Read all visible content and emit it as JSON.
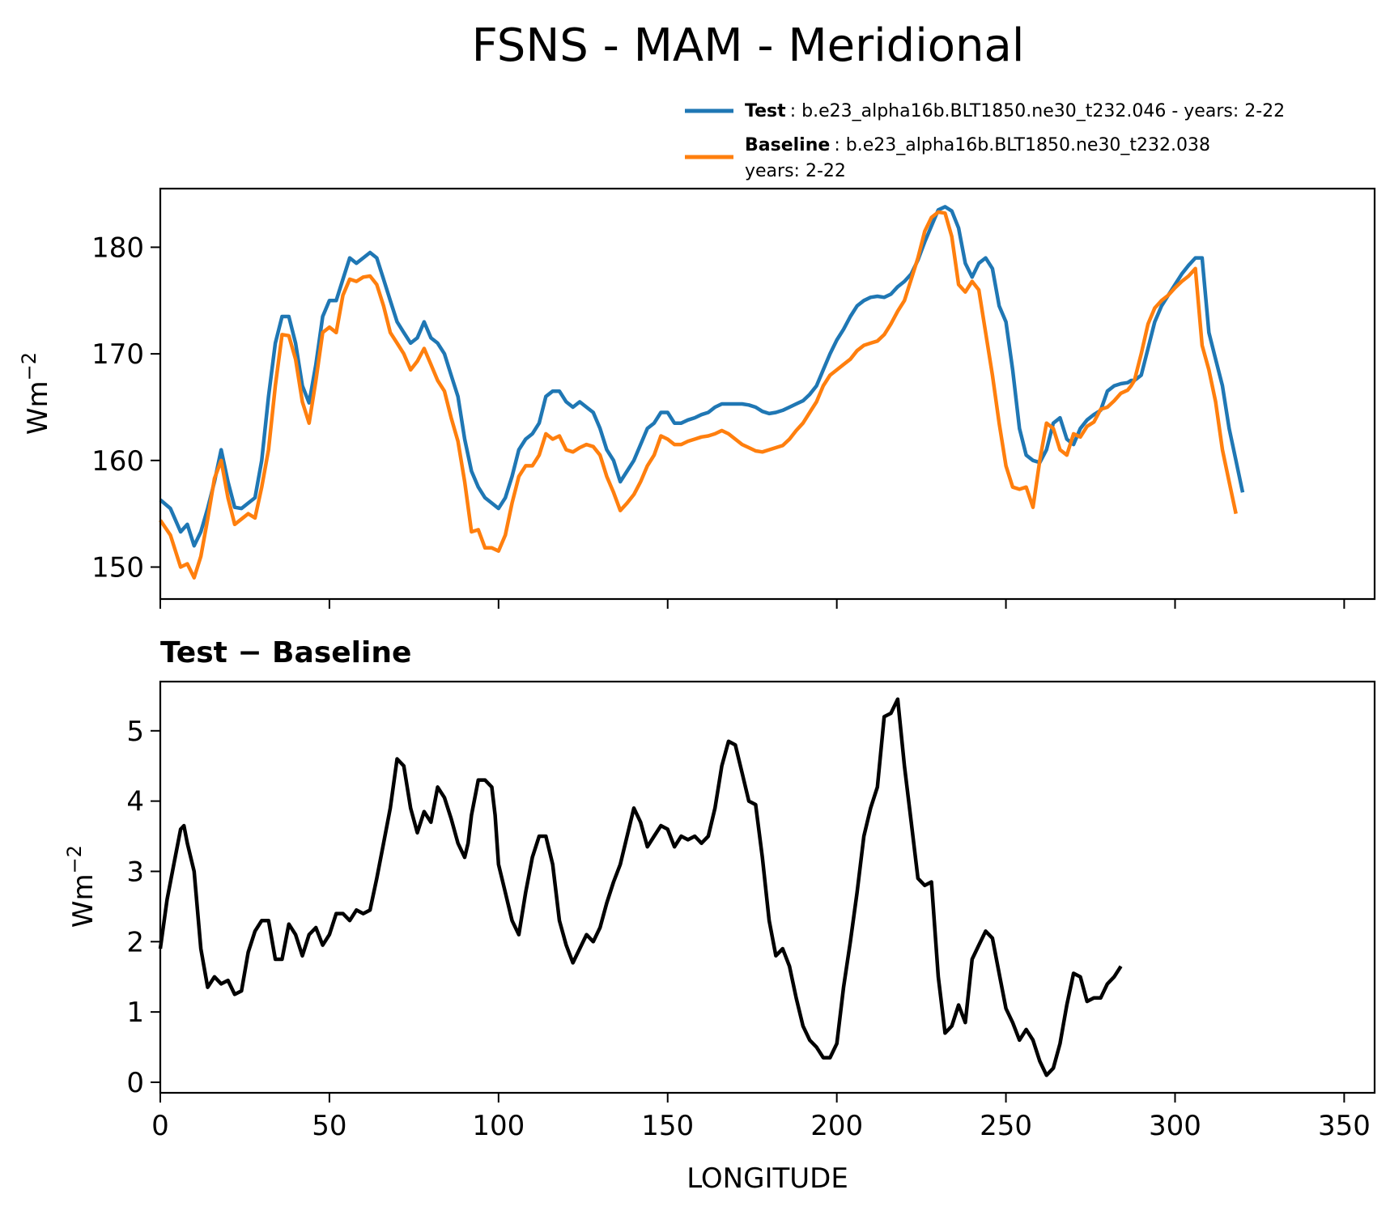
{
  "chart_data": [
    {
      "type": "line",
      "title": "FSNS - MAM - Meridional",
      "xlabel": "",
      "ylabel": "Wm",
      "ylabel_sup": "−2",
      "xlim": [
        0,
        359
      ],
      "ylim": [
        147,
        185.5
      ],
      "xticks": [
        0,
        50,
        100,
        150,
        200,
        250,
        300,
        350
      ],
      "yticks": [
        150,
        160,
        170,
        180
      ],
      "x_anchor": [
        0,
        3,
        6,
        8,
        10,
        12,
        14,
        16,
        18,
        20,
        22,
        24,
        26,
        28,
        30,
        32,
        34,
        36,
        38,
        40,
        42,
        44,
        46,
        48,
        50,
        52,
        54,
        56,
        58,
        60,
        62,
        64,
        66,
        68,
        70,
        72,
        74,
        76,
        78,
        80,
        82,
        84,
        86,
        88,
        90,
        92,
        94,
        96,
        98,
        100,
        102,
        104,
        106,
        108,
        110,
        112,
        114,
        116,
        118,
        120,
        122,
        124,
        126,
        128,
        130,
        132,
        134,
        136,
        138,
        140,
        142,
        144,
        146,
        148,
        150,
        152,
        154,
        156,
        158,
        160,
        162,
        164,
        166,
        168,
        170,
        172,
        174,
        176,
        178,
        180,
        182,
        184,
        186,
        188,
        190,
        192,
        194,
        196,
        198,
        200,
        202,
        204,
        206,
        208,
        210,
        212,
        214,
        216,
        218,
        220,
        222,
        224,
        226,
        228,
        230,
        232,
        234,
        236,
        238,
        240,
        242,
        244,
        246,
        248,
        250,
        252,
        254,
        256,
        258,
        260,
        262,
        264,
        266,
        268,
        270,
        272,
        274,
        276,
        278,
        280,
        282,
        284,
        286,
        287,
        288,
        290,
        292,
        294,
        296,
        298,
        300,
        302,
        304,
        306,
        308,
        310,
        312,
        314,
        316,
        318,
        320,
        322,
        324,
        326,
        328,
        330,
        332,
        334,
        336,
        338,
        340,
        342,
        344,
        346,
        348,
        350,
        352,
        354,
        356,
        359
      ],
      "series": [
        {
          "name": "Test",
          "legend_label": "Test",
          "legend_desc": ": b.e23_alpha16b.BLT1850.ne30_t232.046 - years: 2-22",
          "color": "#1f77b4",
          "values": [
            156.3,
            155.5,
            153.3,
            154,
            152,
            153.3,
            155.5,
            158,
            161,
            158,
            155.6,
            155.5,
            156,
            156.5,
            160,
            166,
            171,
            173.5,
            173.5,
            171,
            167,
            165.4,
            169,
            173.5,
            175,
            175,
            177,
            179,
            178.5,
            179,
            179.5,
            179,
            177,
            175,
            173,
            172,
            171,
            171.5,
            173,
            171.5,
            171,
            170,
            168,
            166,
            162,
            159,
            157.5,
            156.5,
            156,
            155.5,
            156.5,
            158.5,
            161,
            162,
            162.5,
            163.5,
            166,
            166.5,
            166.5,
            165.5,
            165,
            165.5,
            165,
            164.5,
            163,
            161,
            160,
            158,
            159,
            160,
            161.5,
            163,
            163.5,
            164.5,
            164.5,
            163.5,
            163.5,
            163.8,
            164,
            164.3,
            164.5,
            165,
            165.3,
            165.3,
            165.3,
            165.3,
            165.2,
            165,
            164.6,
            164.4,
            164.5,
            164.7,
            165,
            165.3,
            165.6,
            166.2,
            167,
            168.5,
            170,
            171.3,
            172.3,
            173.5,
            174.5,
            175,
            175.3,
            175.4,
            175.3,
            175.6,
            176.3,
            176.8,
            177.5,
            178.8,
            180.5,
            182,
            183.5,
            183.8,
            183.4,
            181.8,
            178.5,
            177.2,
            178.5,
            179,
            178,
            174.5,
            173,
            168.5,
            163,
            160.5,
            160,
            159.8,
            161,
            163.5,
            164,
            162,
            161.5,
            163,
            163.8,
            164.3,
            164.7,
            166.5,
            167,
            167.2,
            167.3,
            167.5,
            167.5,
            168,
            170.5,
            173,
            174.5,
            175.5,
            176.5,
            177.5,
            178.3,
            179,
            179,
            172,
            169.5,
            167,
            163,
            160,
            157
          ],
          "legend_pos": "top-right"
        },
        {
          "name": "Baseline",
          "legend_label": "Baseline",
          "legend_desc": ": b.e23_alpha16b.BLT1850.ne30_t232.038",
          "legend_desc2": "years: 2-22",
          "color": "#ff7f0e",
          "values": [
            154.4,
            153,
            150,
            150.3,
            149,
            151,
            154.5,
            158.3,
            160,
            156.5,
            154,
            154.5,
            155,
            154.6,
            157.5,
            161,
            167,
            171.8,
            171.7,
            169.5,
            165.5,
            163.5,
            167.5,
            172,
            172.5,
            172,
            175.5,
            177,
            176.8,
            177.2,
            177.3,
            176.5,
            174.5,
            172,
            171,
            170,
            168.5,
            169.3,
            170.5,
            169,
            167.5,
            166.5,
            164,
            161.8,
            158,
            153.3,
            153.5,
            151.8,
            151.8,
            151.5,
            153,
            156,
            158.5,
            159.5,
            159.5,
            160.5,
            162.5,
            162,
            162.3,
            161,
            160.8,
            161.2,
            161.5,
            161.3,
            160.5,
            158.5,
            157,
            155.3,
            156,
            156.8,
            158,
            159.5,
            160.5,
            162.3,
            162,
            161.5,
            161.5,
            161.8,
            162,
            162.2,
            162.3,
            162.5,
            162.8,
            162.5,
            162,
            161.5,
            161.2,
            160.9,
            160.8,
            161,
            161.2,
            161.4,
            162,
            162.8,
            163.5,
            164.5,
            165.5,
            167,
            168,
            168.5,
            169,
            169.5,
            170.3,
            170.8,
            171,
            171.2,
            171.8,
            172.8,
            174,
            175,
            177,
            179,
            181.5,
            182.8,
            183.3,
            183.2,
            181,
            176.5,
            175.8,
            176.8,
            176,
            172,
            168,
            163.5,
            159.5,
            157.5,
            157.3,
            157.5,
            155.6,
            160,
            163.5,
            163,
            161,
            160.5,
            162.5,
            162.2,
            163.2,
            163.6,
            164.8,
            165,
            165.6,
            166.3,
            166.6,
            167,
            167.5,
            170,
            172.8,
            174.3,
            175,
            175.5,
            176.2,
            176.8,
            177.3,
            178,
            170.8,
            168.5,
            165.5,
            161,
            158,
            155
          ]
        }
      ]
    },
    {
      "type": "line",
      "title": "Test − Baseline",
      "xlabel": "LONGITUDE",
      "ylabel": "Wm",
      "ylabel_sup": "−2",
      "xlim": [
        0,
        359
      ],
      "ylim": [
        -0.15,
        5.7
      ],
      "xticks": [
        0,
        50,
        100,
        150,
        200,
        250,
        300,
        350
      ],
      "yticks": [
        0,
        1,
        2,
        3,
        4,
        5
      ],
      "x_anchor": [
        0,
        2,
        4,
        6,
        7,
        8,
        10,
        12,
        14,
        16,
        18,
        20,
        22,
        24,
        26,
        28,
        30,
        32,
        34,
        36,
        38,
        40,
        42,
        44,
        46,
        48,
        50,
        52,
        54,
        56,
        58,
        60,
        62,
        64,
        66,
        68,
        70,
        72,
        74,
        76,
        78,
        80,
        82,
        84,
        86,
        88,
        90,
        91,
        92,
        94,
        96,
        98,
        99,
        100,
        102,
        104,
        106,
        108,
        110,
        112,
        114,
        116,
        118,
        120,
        122,
        124,
        126,
        128,
        130,
        132,
        134,
        136,
        138,
        140,
        142,
        144,
        146,
        148,
        150,
        152,
        154,
        156,
        158,
        160,
        162,
        164,
        166,
        168,
        170,
        172,
        174,
        176,
        178,
        180,
        182,
        184,
        186,
        188,
        190,
        192,
        194,
        196,
        198,
        200,
        202,
        204,
        206,
        208,
        210,
        212,
        214,
        216,
        218,
        220,
        222,
        224,
        226,
        228,
        230,
        232,
        234,
        236,
        238,
        240,
        242,
        244,
        246,
        248,
        250,
        252,
        254,
        256,
        258,
        260,
        262,
        264,
        266,
        268,
        270,
        272,
        274,
        276,
        277,
        278,
        280,
        282,
        284,
        286,
        287,
        288,
        290,
        292,
        294,
        296,
        298,
        300,
        302,
        304,
        306,
        308,
        310,
        312,
        314,
        316,
        318,
        320,
        322,
        324,
        326,
        328,
        330,
        332,
        334,
        336,
        338,
        340,
        342,
        344,
        346,
        348,
        350,
        352,
        354,
        356,
        359
      ],
      "series": [
        {
          "name": "Test − Baseline",
          "color": "#000000",
          "values": [
            1.9,
            2.6,
            3.1,
            3.6,
            3.65,
            3.4,
            3.0,
            1.9,
            1.35,
            1.5,
            1.4,
            1.45,
            1.25,
            1.3,
            1.85,
            2.15,
            2.3,
            2.3,
            1.75,
            1.75,
            2.25,
            2.1,
            1.8,
            2.1,
            2.2,
            1.95,
            2.1,
            2.4,
            2.4,
            2.3,
            2.45,
            2.4,
            2.45,
            2.9,
            3.4,
            3.9,
            4.6,
            4.5,
            3.9,
            3.55,
            3.85,
            3.7,
            4.2,
            4.05,
            3.75,
            3.4,
            3.2,
            3.4,
            3.8,
            4.3,
            4.3,
            4.2,
            3.8,
            3.1,
            2.7,
            2.3,
            2.1,
            2.7,
            3.2,
            3.5,
            3.5,
            3.1,
            2.3,
            1.95,
            1.7,
            1.9,
            2.1,
            2.0,
            2.2,
            2.55,
            2.85,
            3.1,
            3.5,
            3.9,
            3.7,
            3.35,
            3.5,
            3.65,
            3.6,
            3.35,
            3.5,
            3.45,
            3.5,
            3.4,
            3.5,
            3.9,
            4.5,
            4.85,
            4.8,
            4.4,
            4.0,
            3.95,
            3.2,
            2.3,
            1.8,
            1.9,
            1.65,
            1.2,
            0.8,
            0.6,
            0.5,
            0.35,
            0.35,
            0.55,
            1.35,
            2.0,
            2.7,
            3.5,
            3.9,
            4.2,
            5.2,
            5.25,
            5.45,
            4.5,
            3.7,
            2.9,
            2.8,
            2.85,
            1.5,
            0.7,
            0.8,
            1.1,
            0.85,
            1.75,
            1.95,
            2.15,
            2.05,
            1.55,
            1.05,
            0.85,
            0.6,
            0.75,
            0.6,
            0.3,
            0.1,
            0.2,
            0.55,
            1.1,
            1.55,
            1.5,
            1.15,
            1.2,
            1.2,
            1.2,
            1.4,
            1.5,
            1.65
          ]
        }
      ]
    }
  ]
}
